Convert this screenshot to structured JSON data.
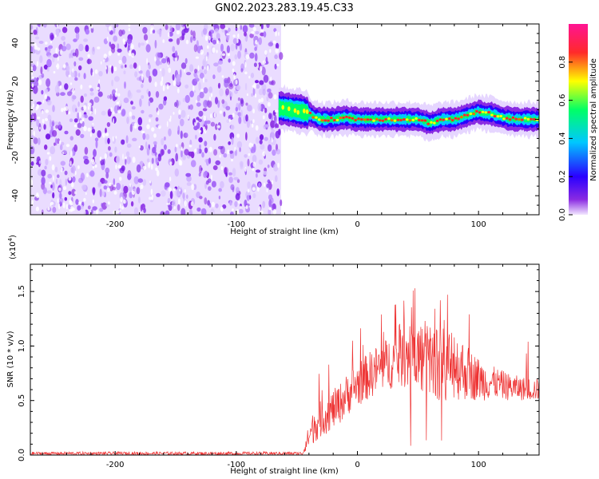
{
  "title": "GN02.2023.283.19.45.C33",
  "chart_data": [
    {
      "type": "heatmap",
      "xlabel": "Height of straight line (km)",
      "ylabel": "Frequency (Hz)",
      "xlim": [
        -270,
        150
      ],
      "ylim": [
        -50,
        50
      ],
      "xticks": [
        -200,
        -100,
        0,
        100
      ],
      "yticks": [
        -40,
        -20,
        0,
        20,
        40
      ],
      "colorbar": {
        "label": "Normalized spectral amplitude",
        "range": [
          0,
          1
        ],
        "ticks": [
          "0.0",
          "0.2",
          "0.4",
          "0.6",
          "0.8"
        ],
        "colormap": [
          "#f2e6ff",
          "#8a2be2",
          "#2a00ff",
          "#00c8ff",
          "#00ff66",
          "#ffff00",
          "#ff2a2a",
          "#ff1493"
        ]
      },
      "noise_region_x": [
        -270,
        -63
      ],
      "signal_track": {
        "x": [
          -65,
          -55,
          -45,
          -40,
          -35,
          -30,
          -20,
          -10,
          0,
          10,
          20,
          30,
          40,
          50,
          55,
          60,
          65,
          70,
          75,
          80,
          85,
          90,
          95,
          100,
          105,
          110,
          115,
          120,
          130,
          140,
          150
        ],
        "frequency": [
          6,
          5,
          4,
          3,
          1,
          0,
          0,
          1,
          0,
          0,
          0,
          0,
          0,
          0,
          -1,
          -2,
          -1,
          0,
          0,
          0,
          1,
          2,
          3,
          4,
          3,
          3,
          2,
          1,
          0,
          0,
          0
        ]
      }
    },
    {
      "type": "line",
      "xlabel": "Height of straight line (km)",
      "ylabel": "SNR (10 * v/v)",
      "scale_label": "(x10",
      "scale_exp": "4",
      "xlim": [
        -270,
        150
      ],
      "ylim": [
        0,
        1.75
      ],
      "xticks": [
        -200,
        -100,
        0,
        100
      ],
      "yticks": [
        "0.0",
        "0.5",
        "1.0",
        "1.5"
      ],
      "series": [
        {
          "color": "#ee3333",
          "envelope": {
            "x": [
              -270,
              -45,
              -42,
              -35,
              -25,
              -15,
              -5,
              5,
              15,
              25,
              35,
              45,
              55,
              65,
              75,
              85,
              95,
              105,
              115,
              125,
              135,
              150
            ],
            "low": [
              0.0,
              0.0,
              0.05,
              0.12,
              0.2,
              0.28,
              0.4,
              0.48,
              0.55,
              0.6,
              0.62,
              0.6,
              0.55,
              0.5,
              0.5,
              0.5,
              0.5,
              0.5,
              0.52,
              0.5,
              0.5,
              0.5
            ],
            "high": [
              0.03,
              0.03,
              0.2,
              0.45,
              0.55,
              0.65,
              0.8,
              0.9,
              1.0,
              1.08,
              1.15,
              1.2,
              1.25,
              1.2,
              1.15,
              1.1,
              0.95,
              0.85,
              0.8,
              0.75,
              0.72,
              0.7
            ]
          }
        }
      ]
    }
  ]
}
